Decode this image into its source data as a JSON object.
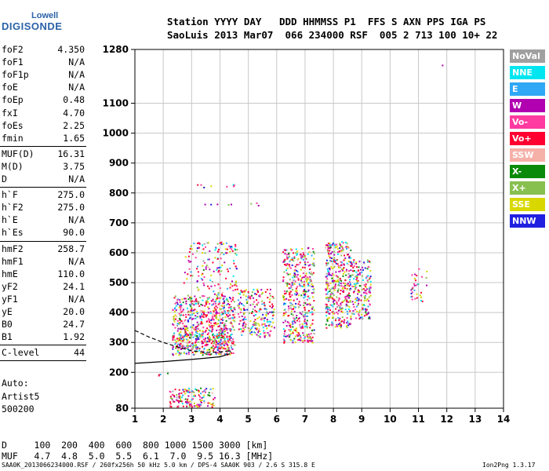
{
  "logo": {
    "top": "Lowell",
    "main": "DIGISONDE"
  },
  "header": {
    "line1": "Station YYYY DAY   DDD HHMMSS P1  FFS S AXN PPS IGA PS",
    "line2": "SaoLuis 2013 Mar07  066 234000 RSF  005 2 713 100 10+ 22"
  },
  "params": [
    {
      "group": [
        {
          "name": "foF2",
          "value": "4.350"
        },
        {
          "name": "foF1",
          "value": "N/A"
        },
        {
          "name": "foF1p",
          "value": "N/A"
        },
        {
          "name": "foE",
          "value": "N/A"
        },
        {
          "name": "foEp",
          "value": "0.48"
        },
        {
          "name": "fxI",
          "value": "4.70"
        },
        {
          "name": "foEs",
          "value": "2.25"
        },
        {
          "name": "fmin",
          "value": "1.65"
        }
      ]
    },
    {
      "group": [
        {
          "name": "MUF(D)",
          "value": "16.31"
        },
        {
          "name": "M(D)",
          "value": "3.75"
        },
        {
          "name": "D",
          "value": "N/A"
        }
      ]
    },
    {
      "group": [
        {
          "name": "h`F",
          "value": "275.0"
        },
        {
          "name": "h`F2",
          "value": "275.0"
        },
        {
          "name": "h`E",
          "value": "N/A"
        },
        {
          "name": "h`Es",
          "value": "90.0"
        }
      ]
    },
    {
      "group": [
        {
          "name": "hmF2",
          "value": "258.7"
        },
        {
          "name": "hmF1",
          "value": "N/A"
        },
        {
          "name": "hmE",
          "value": "110.0"
        },
        {
          "name": "yF2",
          "value": "24.1"
        },
        {
          "name": "yF1",
          "value": "N/A"
        },
        {
          "name": "yE",
          "value": "20.0"
        },
        {
          "name": "B0",
          "value": "24.7"
        },
        {
          "name": "B1",
          "value": "1.92"
        }
      ]
    },
    {
      "group": [
        {
          "name": "C-level",
          "value": "44"
        }
      ]
    }
  ],
  "autoscale": {
    "line1": "Auto:",
    "line2": "Artist5",
    "line3": "500200"
  },
  "legend": [
    {
      "label": "NoVal",
      "color": "#a0a0a0"
    },
    {
      "label": "NNE",
      "color": "#00e6f0"
    },
    {
      "label": "E",
      "color": "#2fa8f5"
    },
    {
      "label": "W",
      "color": "#b000b0"
    },
    {
      "label": "Vo-",
      "color": "#ff3aa0"
    },
    {
      "label": "Vo+",
      "color": "#ff0030"
    },
    {
      "label": "SSW",
      "color": "#f5b0a8"
    },
    {
      "label": "X-",
      "color": "#0a8a0a"
    },
    {
      "label": "X+",
      "color": "#88c050"
    },
    {
      "label": "SSE",
      "color": "#d8d800"
    },
    {
      "label": "NNW",
      "color": "#2020e0"
    }
  ],
  "chart_data": {
    "type": "scatter",
    "xlim": [
      1,
      14
    ],
    "ylim": [
      80,
      1280
    ],
    "x_ticks": [
      1,
      2,
      3,
      4,
      5,
      6,
      7,
      8,
      9,
      10,
      11,
      12,
      13,
      14
    ],
    "y_ticks": [
      80,
      200,
      300,
      400,
      500,
      600,
      700,
      800,
      900,
      1000,
      1100,
      1280
    ],
    "grid": true,
    "traces": [
      {
        "name": "",
        "style": "dashed",
        "points": [
          [
            1.0,
            340
          ],
          [
            1.5,
            318
          ],
          [
            2.0,
            300
          ],
          [
            2.5,
            285
          ],
          [
            3.0,
            272
          ],
          [
            3.5,
            267
          ],
          [
            4.0,
            268
          ],
          [
            4.4,
            272
          ]
        ]
      },
      {
        "name": "",
        "style": "solid",
        "points": [
          [
            1.0,
            230
          ],
          [
            2.0,
            236
          ],
          [
            3.0,
            243
          ],
          [
            4.0,
            252
          ],
          [
            4.35,
            262
          ]
        ]
      }
    ],
    "clusters": [
      {
        "x": [
          2.3,
          4.5
        ],
        "y": [
          260,
          460
        ],
        "density": 1.0
      },
      {
        "x": [
          2.5,
          4.4
        ],
        "y": [
          280,
          330
        ],
        "density": 0.8
      },
      {
        "x": [
          2.7,
          4.6
        ],
        "y": [
          460,
          640
        ],
        "density": 0.3
      },
      {
        "x": [
          4.6,
          5.9
        ],
        "y": [
          320,
          480
        ],
        "density": 0.7
      },
      {
        "x": [
          6.2,
          7.3
        ],
        "y": [
          300,
          620
        ],
        "density": 0.8
      },
      {
        "x": [
          7.7,
          8.6
        ],
        "y": [
          350,
          640
        ],
        "density": 1.0
      },
      {
        "x": [
          8.6,
          9.3
        ],
        "y": [
          380,
          580
        ],
        "density": 0.8
      },
      {
        "x": [
          10.7,
          11.3
        ],
        "y": [
          440,
          560
        ],
        "density": 0.3
      },
      {
        "x": [
          2.2,
          3.8
        ],
        "y": [
          85,
          150
        ],
        "density": 0.9
      },
      {
        "x": [
          1.8,
          2.3
        ],
        "y": [
          190,
          200
        ],
        "density": 0.5
      },
      {
        "x": [
          3.0,
          4.5
        ],
        "y": [
          820,
          830
        ],
        "density": 0.4
      },
      {
        "x": [
          3.0,
          4.5
        ],
        "y": [
          760,
          765
        ],
        "density": 0.4
      },
      {
        "x": [
          5.0,
          5.6
        ],
        "y": [
          760,
          770
        ],
        "density": 0.3
      },
      {
        "x": [
          11.8,
          11.85
        ],
        "y": [
          1190,
          1230
        ],
        "density": 0.2
      }
    ]
  },
  "bottom": {
    "line1": "D     100  200  400  600  800 1000 1500 3000 [km]",
    "line2": "MUF   4.7  4.8  5.0  5.5  6.1  7.0  9.5 16.3 [MHz]"
  },
  "footer": {
    "left": "SAA0K_2013066234000.RSF / 260fx256h 50 kHz 5.0 km / DPS-4 SAA0K 903 / 2.6 S 315.8 E",
    "right": "Ion2Png 1.3.17"
  }
}
